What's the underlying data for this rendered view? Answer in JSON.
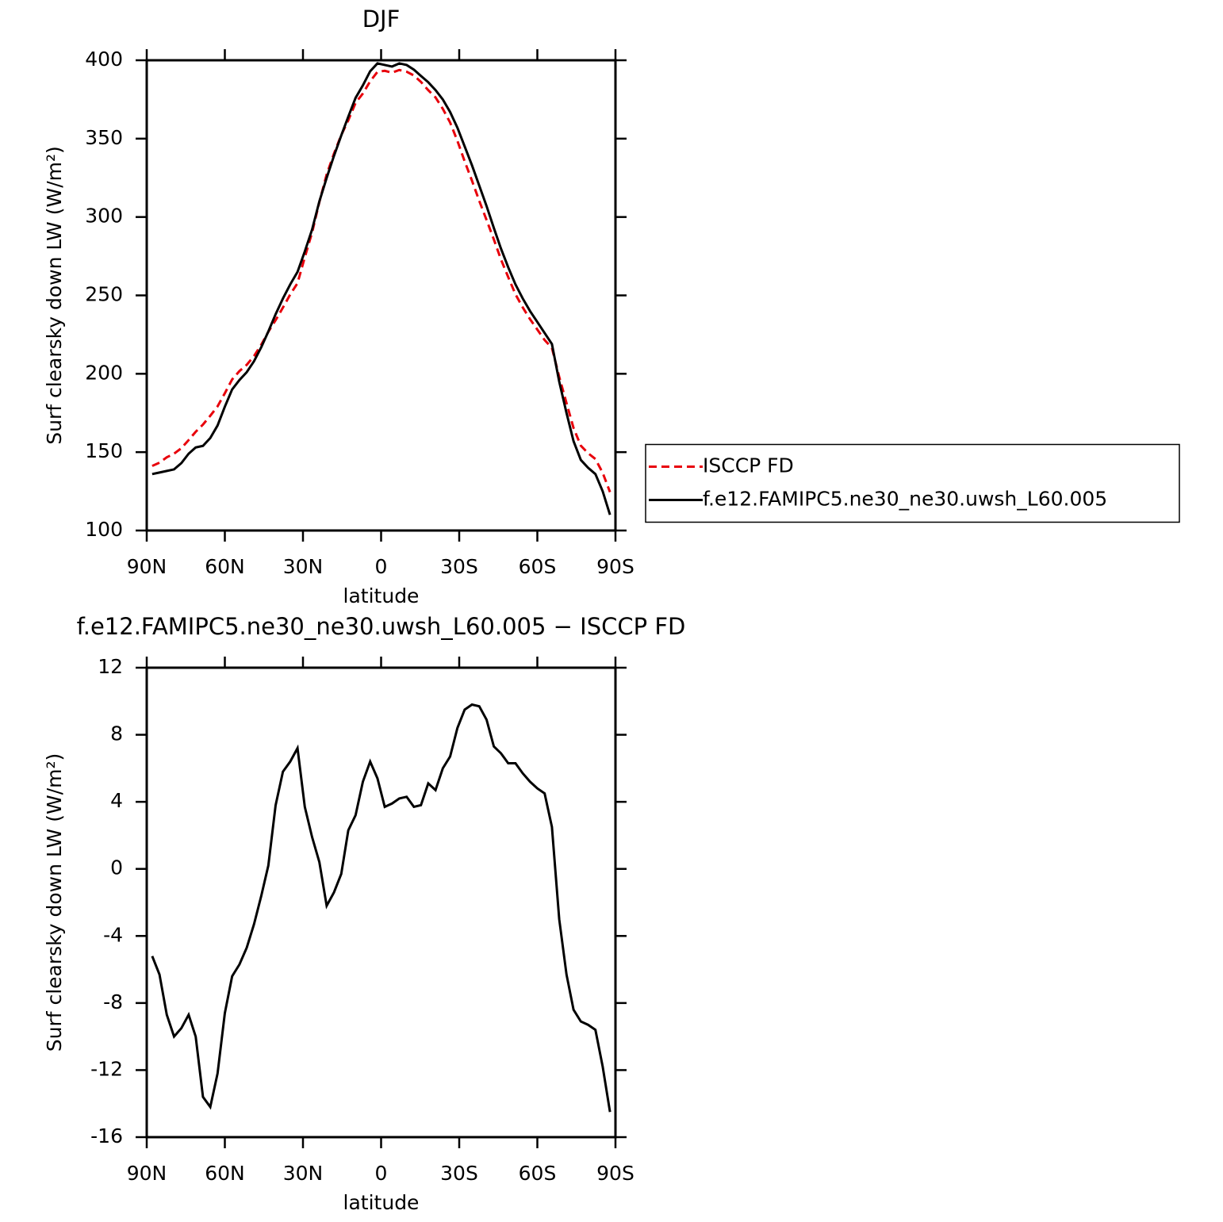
{
  "chart_data": [
    {
      "type": "line",
      "title": "DJF",
      "xlabel": "latitude",
      "ylabel": "Surf clearsky down LW (W/m²)",
      "x": [
        87.9,
        85.1,
        82.3,
        79.5,
        76.7,
        73.9,
        71.2,
        68.4,
        65.6,
        62.8,
        60.0,
        57.2,
        54.4,
        51.6,
        48.8,
        46.0,
        43.3,
        40.5,
        37.7,
        34.9,
        32.1,
        29.3,
        26.5,
        23.7,
        20.9,
        18.1,
        15.3,
        12.6,
        9.8,
        7.0,
        4.2,
        1.4,
        -1.4,
        -4.2,
        -7.0,
        -9.8,
        -12.6,
        -15.3,
        -18.1,
        -20.9,
        -23.7,
        -26.5,
        -29.3,
        -32.1,
        -34.9,
        -37.7,
        -40.5,
        -43.3,
        -46.0,
        -48.8,
        -51.6,
        -54.4,
        -57.2,
        -60.0,
        -62.8,
        -65.6,
        -68.4,
        -71.2,
        -73.9,
        -76.7,
        -79.5,
        -82.3,
        -85.1,
        -87.9
      ],
      "xlim": [
        90,
        -90
      ],
      "xticks": [
        {
          "value": 90,
          "label": "90N"
        },
        {
          "value": 60,
          "label": "60N"
        },
        {
          "value": 30,
          "label": "30N"
        },
        0,
        {
          "value": -30,
          "label": "30S"
        },
        {
          "value": -60,
          "label": "60S"
        },
        {
          "value": -90,
          "label": "90S"
        }
      ],
      "ylim": [
        100,
        400
      ],
      "yticks": [
        100,
        150,
        200,
        250,
        300,
        350,
        400
      ],
      "legend": "right",
      "series": [
        {
          "name": "ISCCP FD",
          "color": "#e8000b",
          "linestyle": "dashed",
          "values": [
            141.2,
            143.3,
            146.7,
            149,
            152.5,
            157.7,
            163,
            167.6,
            173.2,
            179.2,
            187.6,
            196.4,
            201.7,
            205.7,
            211.3,
            218.6,
            226.8,
            234.2,
            242.2,
            250.6,
            257.8,
            274.3,
            290.1,
            309.6,
            327.2,
            340.4,
            352.3,
            361.7,
            372.8,
            378.8,
            386.6,
            392.6,
            393.3,
            392.1,
            393.8,
            392.7,
            390.3,
            386.2,
            380.9,
            376.3,
            369,
            360.3,
            348.6,
            335.5,
            323.2,
            310.3,
            298.1,
            285.7,
            273.1,
            261.7,
            250.7,
            242.3,
            234.8,
            228.2,
            221.5,
            216.5,
            198,
            181.3,
            165.4,
            154.1,
            149.3,
            145.6,
            136.8,
            124.5
          ]
        },
        {
          "name": "f.e12.FAMIPC5.ne30_ne30.uwsh_L60.005",
          "color": "#000000",
          "linestyle": "solid",
          "values": [
            136,
            137,
            138,
            139,
            143,
            149,
            153,
            154,
            159,
            167,
            179,
            190,
            196,
            201,
            208,
            217,
            227,
            238,
            248,
            257,
            265,
            278,
            292,
            310,
            325,
            339,
            352,
            364,
            376,
            384,
            393,
            398,
            397,
            396,
            398,
            397,
            394,
            390,
            386,
            381,
            375,
            367,
            357,
            345,
            333,
            320,
            307,
            293,
            280,
            268,
            257,
            248,
            240,
            233,
            226,
            219,
            195,
            175,
            157,
            145,
            140,
            136,
            125,
            110
          ]
        }
      ]
    },
    {
      "type": "line",
      "title": "f.e12.FAMIPC5.ne30_ne30.uwsh_L60.005 − ISCCP FD",
      "xlabel": "latitude",
      "ylabel": "Surf clearsky down LW (W/m²)",
      "x": [
        87.9,
        85.1,
        82.3,
        79.5,
        76.7,
        73.9,
        71.2,
        68.4,
        65.6,
        62.8,
        60.0,
        57.2,
        54.4,
        51.6,
        48.8,
        46.0,
        43.3,
        40.5,
        37.7,
        34.9,
        32.1,
        29.3,
        26.5,
        23.7,
        20.9,
        18.1,
        15.3,
        12.6,
        9.8,
        7.0,
        4.2,
        1.4,
        -1.4,
        -4.2,
        -7.0,
        -9.8,
        -12.6,
        -15.3,
        -18.1,
        -20.9,
        -23.7,
        -26.5,
        -29.3,
        -32.1,
        -34.9,
        -37.7,
        -40.5,
        -43.3,
        -46.0,
        -48.8,
        -51.6,
        -54.4,
        -57.2,
        -60.0,
        -62.8,
        -65.6,
        -68.4,
        -71.2,
        -73.9,
        -76.7,
        -79.5,
        -82.3,
        -85.1,
        -87.9
      ],
      "xlim": [
        90,
        -90
      ],
      "xticks": [
        {
          "value": 90,
          "label": "90N"
        },
        {
          "value": 60,
          "label": "60N"
        },
        {
          "value": 30,
          "label": "30N"
        },
        0,
        {
          "value": -30,
          "label": "30S"
        },
        {
          "value": -60,
          "label": "60S"
        },
        {
          "value": -90,
          "label": "90S"
        }
      ],
      "ylim": [
        -16,
        12
      ],
      "yticks": [
        -16,
        -12,
        -8,
        -4,
        0,
        4,
        8,
        12
      ],
      "series": [
        {
          "color": "#000000",
          "linestyle": "solid",
          "values": [
            -5.2,
            -6.3,
            -8.7,
            -10,
            -9.5,
            -8.7,
            -10,
            -13.6,
            -14.2,
            -12.2,
            -8.6,
            -6.4,
            -5.7,
            -4.7,
            -3.3,
            -1.6,
            0.2,
            3.8,
            5.8,
            6.4,
            7.2,
            3.7,
            1.9,
            0.4,
            -2.2,
            -1.4,
            -0.3,
            2.3,
            3.2,
            5.2,
            6.4,
            5.4,
            3.7,
            3.9,
            4.2,
            4.3,
            3.7,
            3.8,
            5.1,
            4.7,
            6.0,
            6.7,
            8.4,
            9.5,
            9.8,
            9.7,
            8.9,
            7.3,
            6.9,
            6.3,
            6.3,
            5.7,
            5.2,
            4.8,
            4.5,
            2.5,
            -3.0,
            -6.3,
            -8.4,
            -9.1,
            -9.3,
            -9.6,
            -11.8,
            -14.5
          ]
        }
      ]
    }
  ]
}
